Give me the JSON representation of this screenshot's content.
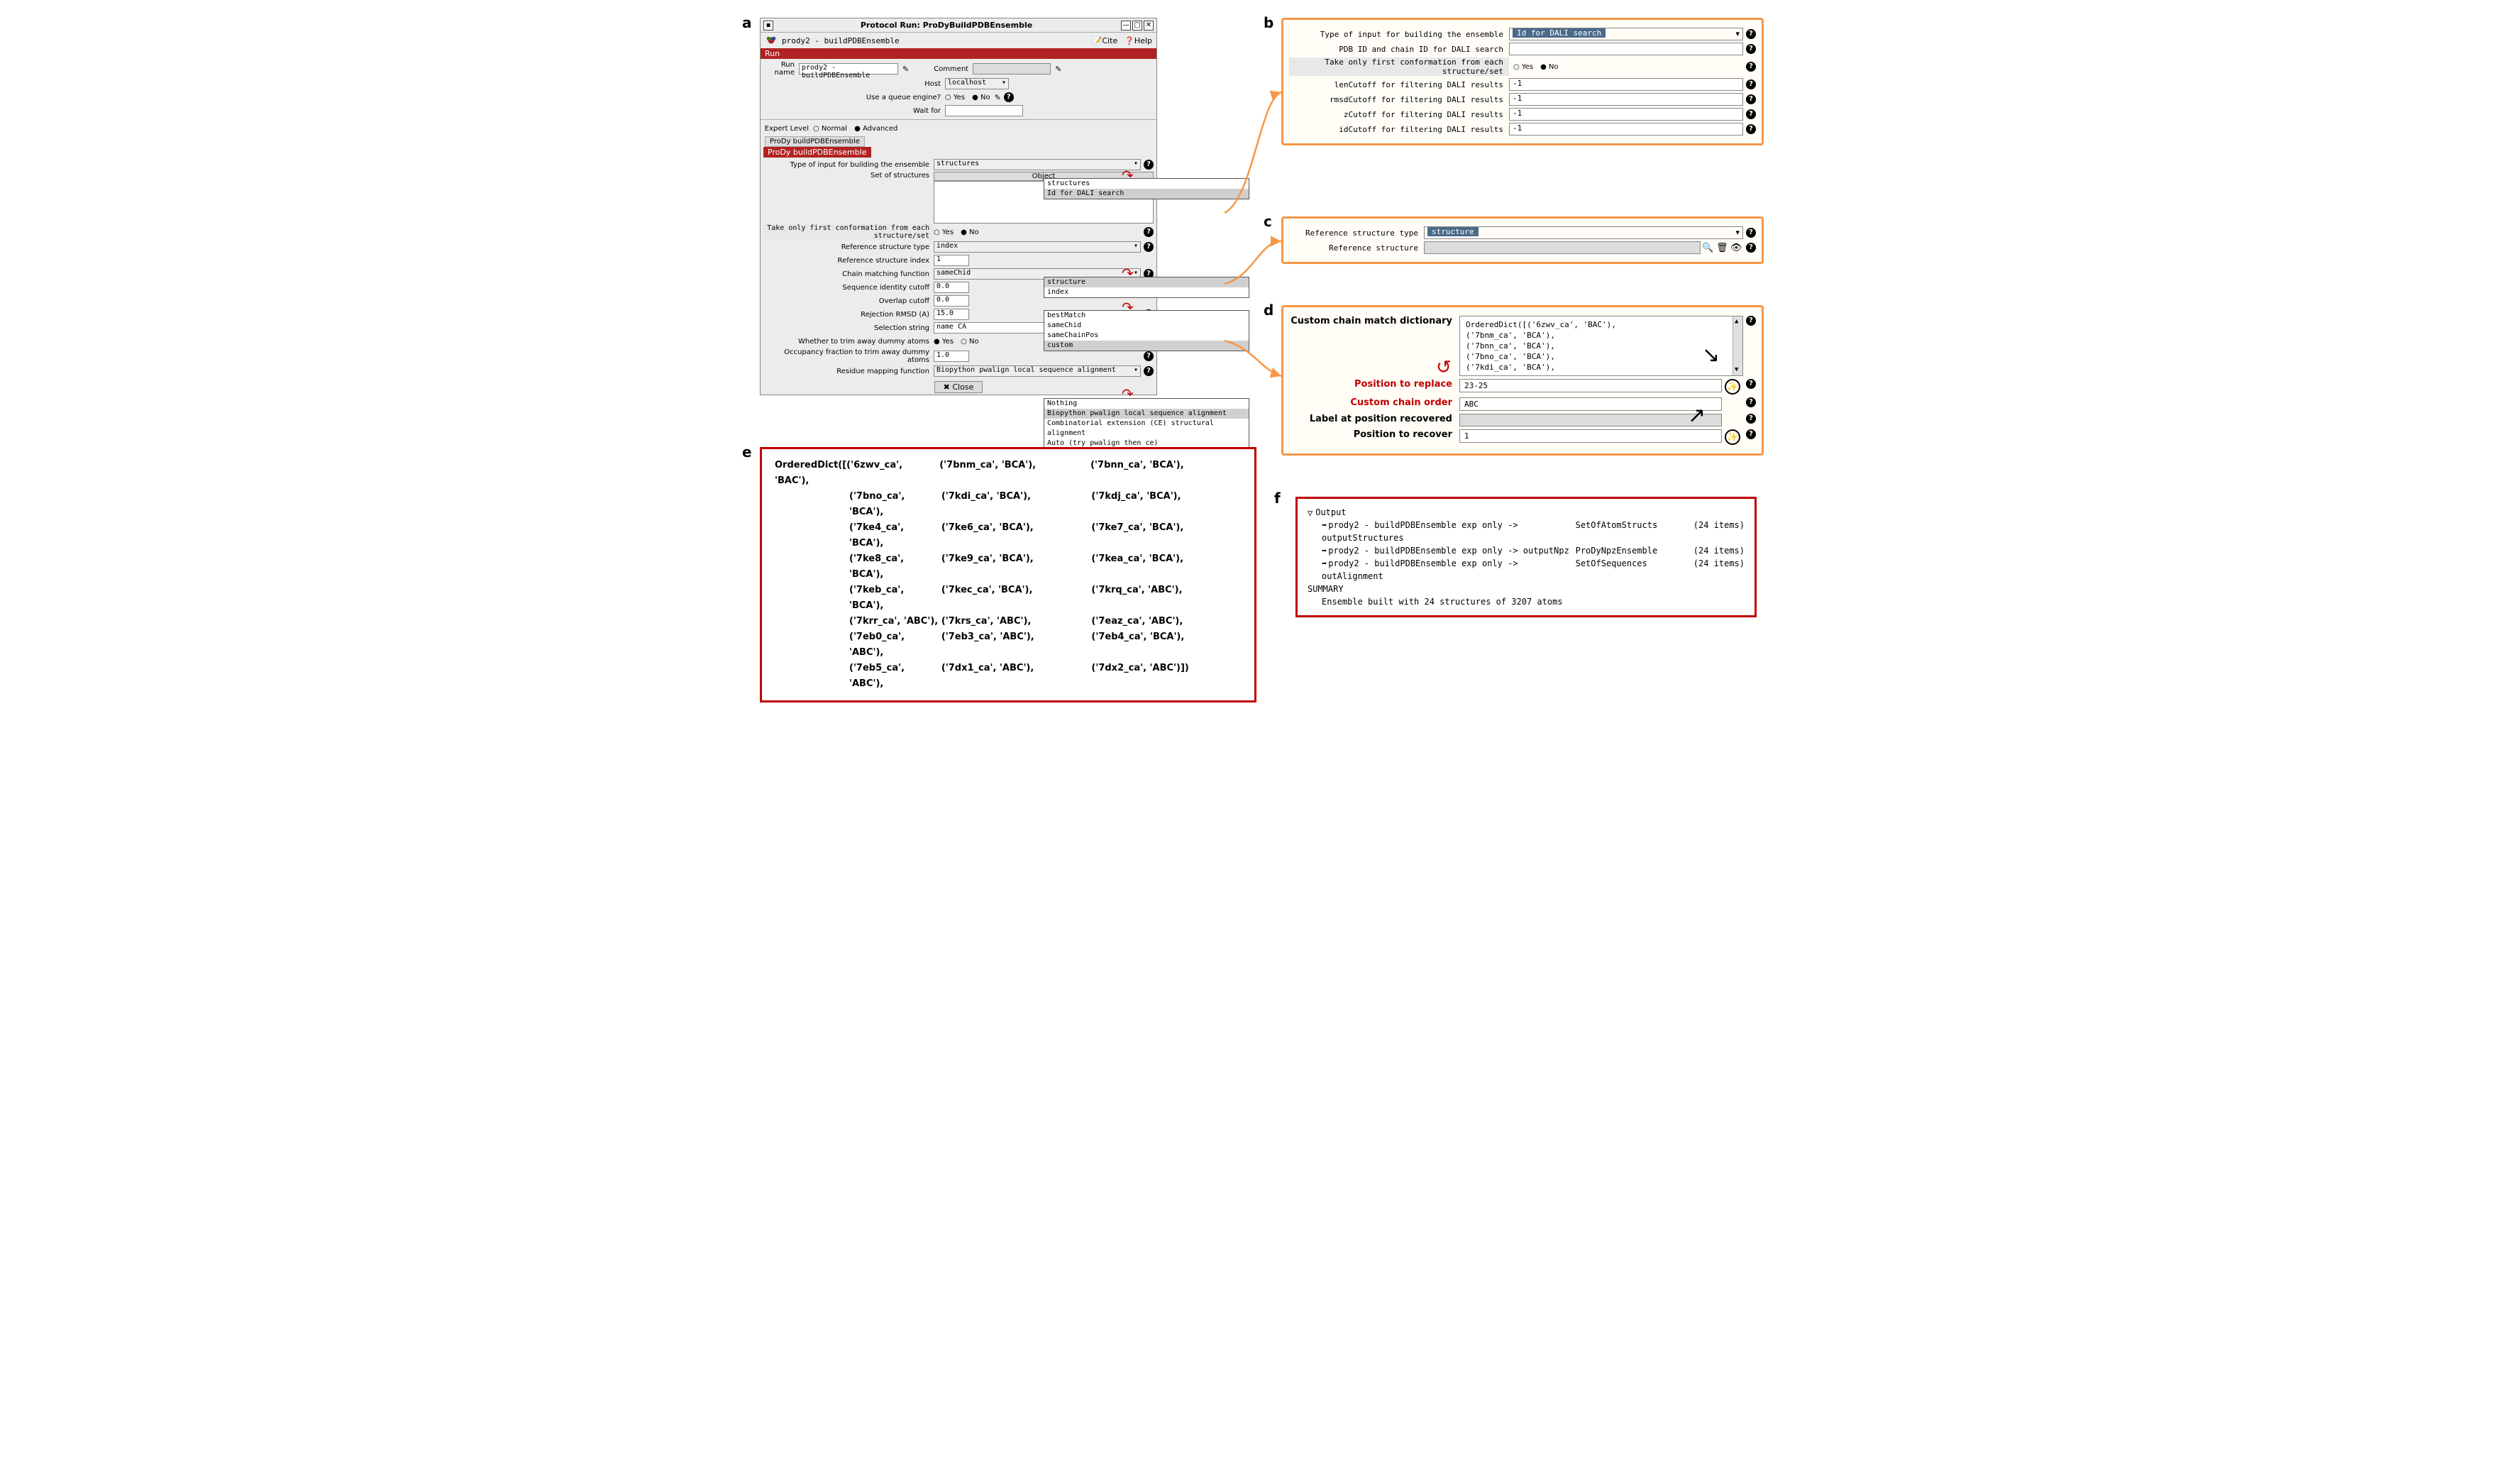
{
  "labels": {
    "a": "a",
    "b": "b",
    "c": "c",
    "d": "d",
    "e": "e",
    "f": "f"
  },
  "a": {
    "title": "Protocol Run: ProDyBuildPDBEnsemble",
    "tabName": "prody2 - buildPDBEnsemble",
    "citeHelp": {
      "cite": "Cite",
      "help": "Help"
    },
    "runHeader": "Run",
    "runName": "prody2 - buildPDBEnsemble",
    "commentLbl": "Comment",
    "hostLbl": "Host",
    "host": "localhost",
    "queueLbl": "Use a queue engine?",
    "queueYes": "Yes",
    "queueNo": "No",
    "waitLbl": "Wait for",
    "expertLbl": "Expert Level",
    "expertNormal": "Normal",
    "expertAdvanced": "Advanced",
    "subTab": "ProDy buildPDBEnsemble",
    "subHeader": "ProDy buildPDBEnsemble",
    "inputTypeLbl": "Type of input for building the ensemble",
    "inputType": "structures",
    "setLbl": "Set of structures",
    "obj": "Object",
    "popInputType": [
      "structures",
      "Id for DALI search"
    ],
    "firstConfLbl": "Take only first conformation from each structure/set",
    "yes": "Yes",
    "no": "No",
    "refTypeLbl": "Reference structure type",
    "refType": "index",
    "popRefType": [
      "structure",
      "index"
    ],
    "refIdxLbl": "Reference structure index",
    "refIdx": "1",
    "chainFnLbl": "Chain matching function",
    "chainFn": "sameChid",
    "popChainFn": [
      "bestMatch",
      "sameChid",
      "sameChainPos",
      "custom"
    ],
    "seqIdLbl": "Sequence identity cutoff",
    "seqId": "0.0",
    "ovlLbl": "Overlap cutoff",
    "ovl": "0.0",
    "rmsdLbl": "Rejection RMSD (A)",
    "rmsd": "15.0",
    "selLbl": "Selection string",
    "sel": "name CA",
    "trimLbl": "Whether to trim away dummy atoms",
    "occLbl": "Occupancy fraction to trim away dummy atoms",
    "occ": "1.0",
    "mapFnLbl": "Residue mapping function",
    "mapFn": "Biopython pwalign local sequence alignment",
    "popMapFn": [
      "Nothing",
      "Biopython pwalign local sequence alignment",
      "Combinatorial extension (CE) structural alignment",
      "Auto (try pwalign then ce)"
    ],
    "closeBtn": "✖  Close"
  },
  "b": {
    "inputTypeLbl": "Type of input for building the ensemble",
    "inputType": "Id for DALI search",
    "pdbIdLbl": "PDB ID and chain ID for DALI search",
    "firstConfLbl": "Take only first conformation from each structure/set",
    "yes": "Yes",
    "no": "No",
    "lenLbl": "lenCutoff for filtering DALI results",
    "len": "-1",
    "rmsdLbl": "rmsdCutoff for filtering DALI results",
    "rmsd": "-1",
    "zLbl": "zCutoff for filtering DALI results",
    "z": "-1",
    "idLbl": "idCutoff for filtering DALI results",
    "id": "-1"
  },
  "c": {
    "refTypeLbl": "Reference structure type",
    "refType": "structure",
    "refStructLbl": "Reference structure"
  },
  "d": {
    "dictLbl": "Custom chain match dictionary",
    "dict": [
      "OrderedDict([('6zwv_ca', 'BAC'),",
      "             ('7bnm_ca', 'BCA'),",
      "             ('7bnn_ca', 'BCA'),",
      "             ('7bno_ca', 'BCA'),",
      "             ('7kdi_ca', 'BCA'),"
    ],
    "posReplaceLbl": "Position to replace",
    "posReplace": "23-25",
    "chainOrderLbl": "Custom chain order",
    "chainOrder": "ABC",
    "labelRecLbl": "Label at position recovered",
    "posRecLbl": "Position to recover",
    "posRec": "1"
  },
  "e": {
    "rows": [
      [
        "OrderedDict([('6zwv_ca',  'BAC'),",
        "('7bnm_ca', 'BCA'),",
        "('7bnn_ca', 'BCA'),"
      ],
      [
        "('7bno_ca', 'BCA'),",
        "('7kdi_ca', 'BCA'),",
        "('7kdj_ca', 'BCA'),"
      ],
      [
        "('7ke4_ca', 'BCA'),",
        "('7ke6_ca', 'BCA'),",
        "('7ke7_ca', 'BCA'),"
      ],
      [
        "('7ke8_ca', 'BCA'),",
        "('7ke9_ca', 'BCA'),",
        "('7kea_ca', 'BCA'),"
      ],
      [
        "('7keb_ca', 'BCA'),",
        "('7kec_ca', 'BCA'),",
        "('7krq_ca', 'ABC'),"
      ],
      [
        "('7krr_ca', 'ABC'),",
        "('7krs_ca', 'ABC'),",
        "('7eaz_ca', 'ABC'),"
      ],
      [
        "('7eb0_ca', 'ABC'),",
        "('7eb3_ca', 'ABC'),",
        "('7eb4_ca', 'BCA'),"
      ],
      [
        "('7eb5_ca', 'ABC'),",
        "('7dx1_ca', 'ABC'),",
        "('7dx2_ca', 'ABC')])"
      ]
    ]
  },
  "f": {
    "output": "Output",
    "rows": [
      [
        "prody2 - buildPDBEnsemble exp only -> outputStructures",
        "SetOfAtomStructs",
        "(24 items)"
      ],
      [
        "prody2 - buildPDBEnsemble exp only -> outputNpz",
        "ProDyNpzEnsemble",
        "(24 items)"
      ],
      [
        "prody2 - buildPDBEnsemble exp only -> outAlignment",
        "SetOfSequences",
        "(24 items)"
      ]
    ],
    "summaryLbl": "SUMMARY",
    "summary": "Ensemble built with 24 structures of 3207 atoms"
  }
}
